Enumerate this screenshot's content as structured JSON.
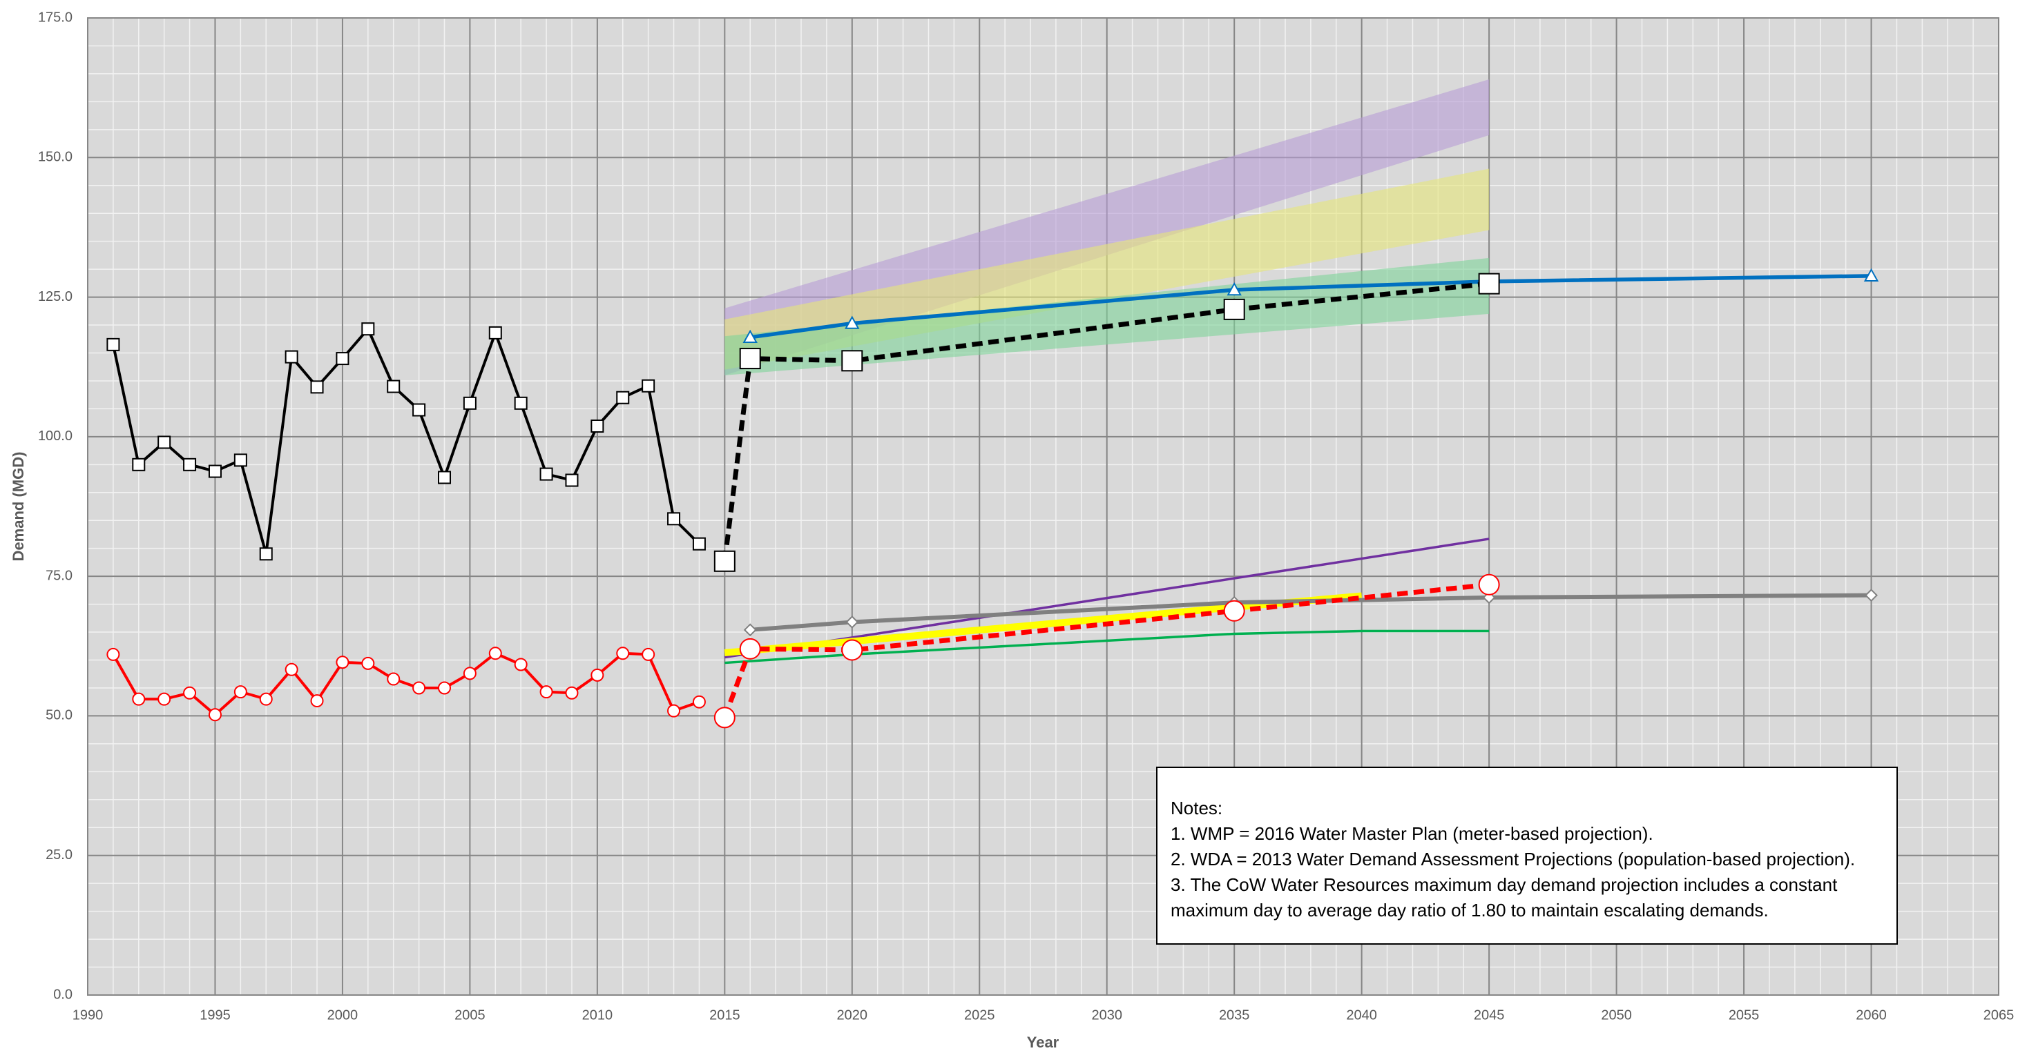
{
  "chart_data": {
    "type": "line",
    "x_label": "Year",
    "y_label": "Demand (MGD)",
    "xlim": [
      1990,
      2065
    ],
    "xticks": [
      1990,
      1995,
      2000,
      2005,
      2010,
      2015,
      2020,
      2025,
      2030,
      2035,
      2040,
      2045,
      2050,
      2055,
      2060,
      2065
    ],
    "ylim": [
      0,
      175
    ],
    "yticks": [
      {
        "value": 0,
        "label": "0.0"
      },
      {
        "value": 25,
        "label": "25.0"
      },
      {
        "value": 50,
        "label": "50.0"
      },
      {
        "value": 75,
        "label": "75.0"
      },
      {
        "value": 100,
        "label": "100.0"
      },
      {
        "value": 125,
        "label": "125.0"
      },
      {
        "value": 150,
        "label": "150.0"
      },
      {
        "value": 175,
        "label": "175.0"
      }
    ],
    "grid": true,
    "bands": [
      {
        "color": "#b79cd6",
        "x": [
          2015,
          2045
        ],
        "low": [
          111,
          154
        ],
        "high": [
          123,
          164
        ]
      },
      {
        "color": "#e6e67a",
        "x": [
          2015,
          2045
        ],
        "low": [
          112,
          137
        ],
        "high": [
          121,
          148
        ]
      },
      {
        "color": "#7fd49a",
        "x": [
          2015,
          2045
        ],
        "low": [
          111,
          122
        ],
        "high": [
          118,
          132
        ]
      }
    ],
    "series": [
      {
        "color": "#7030a0",
        "line_style": "solid",
        "line_width": 3.5,
        "marker": "none",
        "x": [
          2015,
          2045
        ],
        "values": [
          60.5,
          81.7
        ]
      },
      {
        "color": "#ffff00",
        "line_style": "solid",
        "line_width": 10,
        "marker": "none",
        "x": [
          2015,
          2040
        ],
        "values": [
          61.3,
          71.5
        ]
      },
      {
        "color": "#00b050",
        "line_style": "solid",
        "line_width": 3.5,
        "marker": "none",
        "x": [
          2015,
          2020,
          2035,
          2040,
          2045
        ],
        "values": [
          59.5,
          61,
          64.7,
          65.2,
          65.2
        ]
      },
      {
        "color": "#808080",
        "line_style": "solid",
        "line_width": 6,
        "marker": "diamond",
        "marker_size": 16,
        "x": [
          2016,
          2020,
          2035,
          2045,
          2060
        ],
        "values": [
          65.4,
          66.8,
          70.3,
          71.2,
          71.6
        ]
      },
      {
        "color": "#0070c0",
        "line_style": "solid",
        "line_width": 5.5,
        "marker": "triangle",
        "marker_size": 18,
        "x": [
          2016,
          2020,
          2035,
          2045,
          2060
        ],
        "values": [
          117.8,
          120.3,
          126.3,
          127.8,
          128.8
        ]
      },
      {
        "color": "#000000",
        "line_style": "solid",
        "line_width": 4,
        "marker": "square",
        "marker_size": 17,
        "x": [
          1991,
          1992,
          1993,
          1994,
          1995,
          1996,
          1997,
          1998,
          1999,
          2000,
          2001,
          2002,
          2003,
          2004,
          2005,
          2006,
          2007,
          2008,
          2009,
          2010,
          2011,
          2012,
          2013,
          2014
        ],
        "values": [
          116.5,
          95,
          99,
          95,
          93.8,
          95.8,
          79,
          114.3,
          108.9,
          114,
          119.3,
          109,
          104.8,
          92.7,
          106,
          118.6,
          106,
          93.3,
          92.2,
          101.9,
          107,
          109.1,
          85.3,
          80.8
        ]
      },
      {
        "color": "#ff0000",
        "line_style": "solid",
        "line_width": 4,
        "marker": "circle",
        "marker_size": 17,
        "x": [
          1991,
          1992,
          1993,
          1994,
          1995,
          1996,
          1997,
          1998,
          1999,
          2000,
          2001,
          2002,
          2003,
          2004,
          2005,
          2006,
          2007,
          2008,
          2009,
          2010,
          2011,
          2012,
          2013,
          2014
        ],
        "values": [
          61,
          53,
          53,
          54.1,
          50.2,
          54.3,
          53,
          58.3,
          52.7,
          59.6,
          59.4,
          56.6,
          55,
          55,
          57.6,
          61.2,
          59.2,
          54.3,
          54.1,
          57.3,
          61.2,
          61,
          50.9,
          52.5
        ]
      },
      {
        "color": "#000000",
        "line_style": "dashed",
        "line_width": 7,
        "marker": "square",
        "marker_size": 29,
        "x": [
          2015,
          2016,
          2020,
          2035,
          2045
        ],
        "values": [
          77.7,
          114,
          113.6,
          122.8,
          127.4
        ]
      },
      {
        "color": "#ff0000",
        "line_style": "dashed",
        "line_width": 7,
        "marker": "circle",
        "marker_size": 29,
        "x": [
          2015,
          2016,
          2020,
          2035,
          2045
        ],
        "values": [
          49.7,
          62,
          61.8,
          68.8,
          73.5
        ]
      }
    ],
    "notes": [
      "Notes:",
      "1.  WMP = 2016 Water Master Plan (meter-based projection).",
      "2.  WDA = 2013 Water Demand Assessment Projections (population-based projection).",
      "3.  The CoW Water Resources maximum day demand projection includes a constant",
      "maximum day to average day ratio of 1.80 to maintain escalating demands."
    ]
  }
}
